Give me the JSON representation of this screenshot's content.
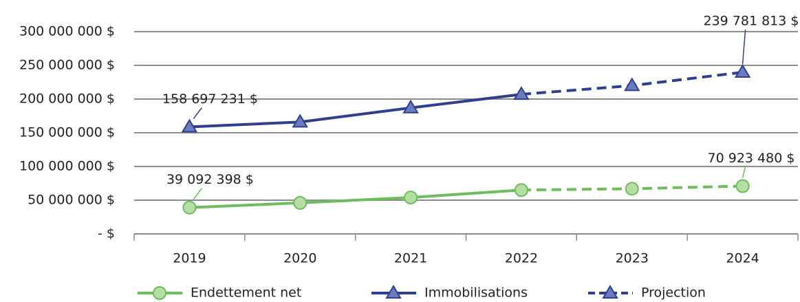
{
  "chart_data": {
    "type": "line",
    "categories": [
      "2019",
      "2020",
      "2021",
      "2022",
      "2023",
      "2024"
    ],
    "series": [
      {
        "name": "Endettement net",
        "color": "#6dbd5a",
        "marker": "circle",
        "marker_fill": "#b5dea5",
        "values": [
          39092398,
          46000000,
          54000000,
          65000000,
          67000000,
          70923480
        ],
        "value_labels": [
          "39 092 398 $",
          null,
          null,
          null,
          null,
          "70 923 480 $"
        ]
      },
      {
        "name": "Immobilisations",
        "color": "#2e3f8f",
        "marker": "triangle",
        "marker_fill": "#6a7bbf",
        "values": [
          158697231,
          166000000,
          187000000,
          207000000,
          220000000,
          239781813
        ],
        "value_labels": [
          "158 697 231 $",
          null,
          null,
          null,
          null,
          "239 781 813 $"
        ]
      }
    ],
    "projection": {
      "name": "Projection",
      "from": "2022"
    },
    "ylim": [
      0,
      300000000
    ],
    "yticks": [
      {
        "value": 0,
        "label": "- $"
      },
      {
        "value": 50000000,
        "label": "50 000 000 $"
      },
      {
        "value": 100000000,
        "label": "100 000 000 $"
      },
      {
        "value": 150000000,
        "label": "150 000 000 $"
      },
      {
        "value": 200000000,
        "label": "200 000 000 $"
      },
      {
        "value": 250000000,
        "label": "250 000 000 $"
      },
      {
        "value": 300000000,
        "label": "300 000 000 $"
      }
    ],
    "grid": true,
    "legend": "bottom"
  }
}
